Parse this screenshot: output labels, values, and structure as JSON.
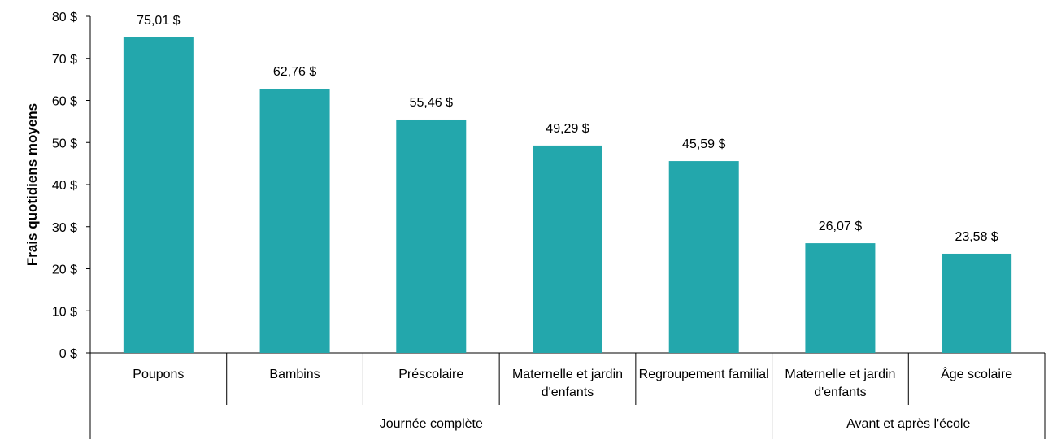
{
  "chart_data": {
    "type": "bar",
    "y_label": "Frais quotidiens moyens",
    "groups": [
      {
        "name": "Journée complète",
        "categories": [
          "Poupons",
          "Bambins",
          "Préscolaire",
          "Maternelle et jardin d'enfants",
          "Regroupement familial"
        ]
      },
      {
        "name": "Avant et après l'école",
        "categories": [
          "Maternelle et jardin d'enfants",
          "Âge scolaire"
        ]
      }
    ],
    "values": [
      75.01,
      62.76,
      55.46,
      49.29,
      45.59,
      26.07,
      23.58
    ],
    "value_labels": [
      "75,01 $",
      "62,76 $",
      "55,46 $",
      "49,29 $",
      "45,59 $",
      "26,07 $",
      "23,58 $"
    ],
    "color": "#23a7ac",
    "ylim": [
      0,
      80
    ],
    "yticks": [
      {
        "value": 0,
        "label": "0 $"
      },
      {
        "value": 10,
        "label": "10 $"
      },
      {
        "value": 20,
        "label": "20 $"
      },
      {
        "value": 30,
        "label": "30 $"
      },
      {
        "value": 40,
        "label": "40 $"
      },
      {
        "value": 50,
        "label": "50 $"
      },
      {
        "value": 60,
        "label": "60 $"
      },
      {
        "value": 70,
        "label": "70 $"
      },
      {
        "value": 80,
        "label": "80 $"
      }
    ],
    "grid": false
  }
}
